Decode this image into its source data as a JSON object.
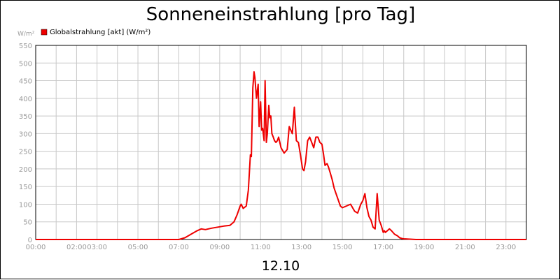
{
  "chart_data": {
    "type": "line",
    "title": "Sonneneinstrahlung [pro Tag]",
    "ylabel": "W/m²",
    "xlabel": "12.10",
    "ylim": [
      0,
      550
    ],
    "xlim": [
      0,
      24
    ],
    "y_ticks": [
      0,
      50,
      100,
      150,
      200,
      250,
      300,
      350,
      400,
      450,
      500,
      550
    ],
    "x_ticks": [
      {
        "value": 0,
        "label": "00:00"
      },
      {
        "value": 2,
        "label": "02:00"
      },
      {
        "value": 3,
        "label": "03:00"
      },
      {
        "value": 5,
        "label": "05:00"
      },
      {
        "value": 7,
        "label": "07:00"
      },
      {
        "value": 9,
        "label": "09:00"
      },
      {
        "value": 11,
        "label": "11:00"
      },
      {
        "value": 13,
        "label": "13:00"
      },
      {
        "value": 15,
        "label": "15:00"
      },
      {
        "value": 17,
        "label": "17:00"
      },
      {
        "value": 19,
        "label": "19:00"
      },
      {
        "value": 21,
        "label": "21:00"
      },
      {
        "value": 23,
        "label": "23:00"
      }
    ],
    "grid": true,
    "legend_position": "top-left",
    "series": [
      {
        "name": "Globalstrahlung [akt] (W/m²)",
        "color": "#ee0000",
        "x": [
          0,
          7.0,
          7.3,
          7.6,
          7.9,
          8.1,
          8.3,
          8.6,
          8.9,
          9.2,
          9.5,
          9.7,
          9.85,
          10.0,
          10.05,
          10.15,
          10.3,
          10.4,
          10.5,
          10.55,
          10.62,
          10.68,
          10.72,
          10.8,
          10.88,
          10.93,
          11.0,
          11.05,
          11.1,
          11.17,
          11.22,
          11.28,
          11.33,
          11.4,
          11.45,
          11.5,
          11.55,
          11.62,
          11.68,
          11.75,
          11.82,
          11.88,
          12.0,
          12.15,
          12.3,
          12.4,
          12.55,
          12.65,
          12.75,
          12.85,
          12.95,
          13.05,
          13.12,
          13.2,
          13.3,
          13.4,
          13.6,
          13.7,
          13.8,
          13.9,
          14.0,
          14.08,
          14.15,
          14.25,
          14.32,
          14.4,
          14.5,
          14.6,
          14.75,
          14.9,
          15.0,
          15.2,
          15.4,
          15.6,
          15.75,
          15.9,
          16.0,
          16.1,
          16.2,
          16.3,
          16.4,
          16.5,
          16.6,
          16.7,
          16.8,
          16.9,
          17.0,
          17.05,
          17.1,
          17.2,
          17.3,
          17.4,
          17.55,
          17.7,
          17.8,
          17.9,
          18.0,
          18.3,
          18.6,
          19.0,
          24.0
        ],
        "values": [
          0,
          0,
          5,
          15,
          25,
          30,
          28,
          32,
          35,
          38,
          40,
          50,
          70,
          95,
          100,
          88,
          95,
          140,
          240,
          235,
          430,
          475,
          460,
          400,
          440,
          320,
          390,
          310,
          315,
          280,
          450,
          275,
          300,
          380,
          345,
          350,
          300,
          290,
          280,
          275,
          280,
          290,
          260,
          245,
          255,
          320,
          300,
          375,
          280,
          275,
          240,
          200,
          195,
          220,
          280,
          290,
          260,
          290,
          290,
          275,
          270,
          240,
          210,
          215,
          205,
          190,
          170,
          145,
          120,
          95,
          90,
          95,
          100,
          80,
          75,
          100,
          110,
          130,
          90,
          65,
          55,
          35,
          30,
          130,
          55,
          40,
          20,
          25,
          20,
          25,
          30,
          25,
          15,
          10,
          5,
          3,
          2,
          1,
          0,
          0,
          0
        ]
      }
    ]
  }
}
